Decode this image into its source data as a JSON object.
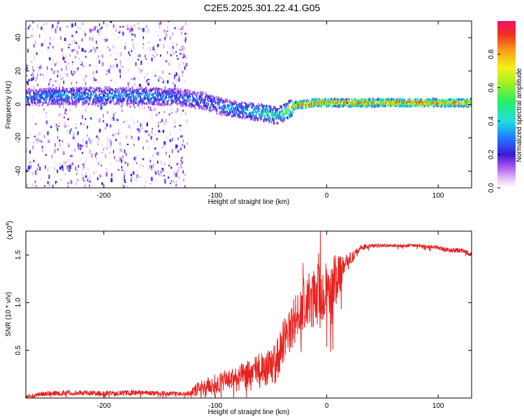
{
  "figure_title": "C2E5.2025.301.22.41.G05",
  "chart_data": [
    {
      "type": "heatmap",
      "title": "C2E5.2025.301.22.41.G05",
      "xlabel": "Height of straight line (km)",
      "ylabel": "Frequency (Hz)",
      "xlim": [
        -270,
        130
      ],
      "ylim": [
        -50,
        50
      ],
      "xticks": [
        -200,
        -100,
        0,
        100
      ],
      "yticks": [
        -40,
        -20,
        0,
        20,
        40
      ],
      "colorbar": {
        "label": "Normalized spectral amplitude",
        "range": [
          0,
          1
        ],
        "ticks": [
          0.0,
          0.2,
          0.4,
          0.6,
          0.8
        ]
      },
      "ridge": {
        "description_values": "centre frequency (Hz) of the strongest band versus height (km)",
        "x": [
          -270,
          -240,
          -200,
          -160,
          -130,
          -110,
          -90,
          -70,
          -55,
          -45,
          -38,
          -30,
          -20,
          -10,
          0,
          20,
          50,
          80,
          100,
          130
        ],
        "y": [
          4,
          5,
          5,
          5,
          4,
          2,
          -2,
          -4,
          -5,
          -7,
          -5,
          -1,
          0,
          1,
          1,
          1,
          1,
          1,
          1,
          1
        ],
        "amplitude": [
          0.3,
          0.35,
          0.35,
          0.35,
          0.3,
          0.3,
          0.35,
          0.4,
          0.5,
          0.45,
          0.55,
          0.85,
          0.95,
          0.9,
          0.9,
          0.9,
          0.9,
          0.95,
          0.9,
          0.9
        ]
      },
      "noise_region": {
        "x": [
          -270,
          -125
        ],
        "y": [
          -50,
          50
        ]
      }
    },
    {
      "type": "line",
      "xlabel": "Height of straight line (km)",
      "ylabel": "SNR (10 * v/v)",
      "y_multiplier": "(x10",
      "y_multiplier_exp": "4",
      "y_multiplier_close": ")",
      "xlim": [
        -270,
        130
      ],
      "ylim": [
        0,
        1.75
      ],
      "xticks": [
        -200,
        -100,
        0,
        100
      ],
      "yticks": [
        0.5,
        1.0,
        1.5
      ],
      "ytick_labels": [
        "0.5",
        "1.0",
        "1.5"
      ],
      "series": [
        {
          "name": "SNR",
          "color": "#e8221f",
          "x": [
            -270,
            -250,
            -230,
            -200,
            -170,
            -140,
            -125,
            -115,
            -100,
            -90,
            -80,
            -70,
            -60,
            -50,
            -45,
            -40,
            -35,
            -30,
            -25,
            -20,
            -15,
            -10,
            -5,
            0,
            5,
            10,
            15,
            20,
            25,
            30,
            40,
            50,
            60,
            80,
            100,
            110,
            120,
            130
          ],
          "y": [
            0.02,
            0.05,
            0.06,
            0.05,
            0.06,
            0.05,
            0.05,
            0.1,
            0.15,
            0.2,
            0.22,
            0.25,
            0.3,
            0.35,
            0.4,
            0.6,
            0.7,
            0.8,
            0.9,
            1.0,
            1.05,
            1.1,
            1.15,
            1.1,
            1.2,
            1.3,
            1.4,
            1.45,
            1.5,
            1.58,
            1.6,
            1.6,
            1.6,
            1.6,
            1.58,
            1.55,
            1.55,
            1.52
          ],
          "noise_amplitude": [
            0.03,
            0.05,
            0.05,
            0.05,
            0.05,
            0.04,
            0.04,
            0.15,
            0.2,
            0.2,
            0.25,
            0.3,
            0.35,
            0.35,
            0.4,
            0.4,
            0.45,
            0.5,
            0.5,
            0.55,
            0.55,
            0.6,
            0.55,
            0.5,
            0.55,
            0.5,
            0.2,
            0.15,
            0.1,
            0.05,
            0.04,
            0.03,
            0.03,
            0.03,
            0.04,
            0.05,
            0.05,
            0.05
          ]
        }
      ]
    }
  ]
}
